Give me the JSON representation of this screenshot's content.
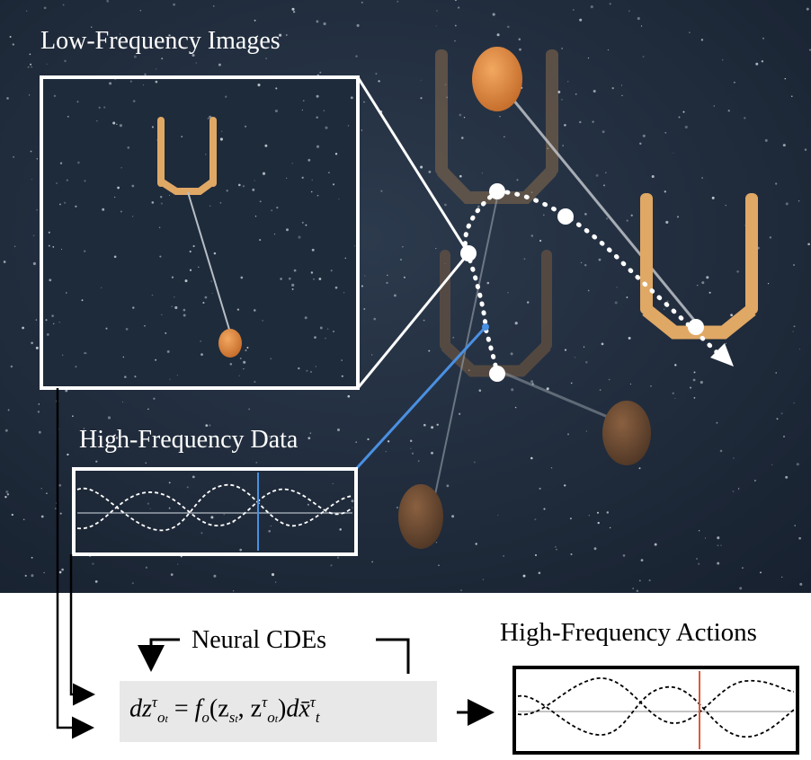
{
  "labels": {
    "low_frequency_images": "Low-Frequency Images",
    "high_frequency_data": "High-Frequency Data",
    "neural_cdes": "Neural CDEs",
    "high_frequency_actions": "High-Frequency Actions"
  },
  "equation": {
    "lhs_d": "dz",
    "lhs_sup": "τ",
    "lhs_sub": "o",
    "lhs_sub2": "t",
    "eq": " = ",
    "f": "f",
    "f_sub": "o",
    "paren_open": "(z",
    "z1_sub": "s",
    "z1_sub2": "t",
    "comma": ", z",
    "z2_sup": "τ",
    "z2_sub": "o",
    "z2_sub2": "t",
    "paren_close": ")",
    "dx": "dx̄",
    "dx_sup": "τ",
    "dx_sub": "t"
  },
  "colors": {
    "background_scene": "#1f2c3d",
    "gripper_bright": "#e0a865",
    "gripper_faded": "#5d4a38",
    "ball": "#d9823e",
    "ball_faded": "#6a4a33",
    "data_marker": "#4a90e2",
    "action_marker": "#e05a3a"
  }
}
